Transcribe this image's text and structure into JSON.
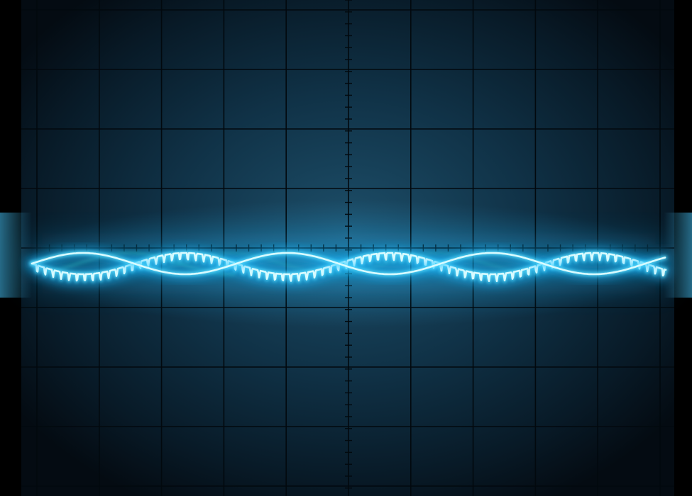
{
  "photo": {
    "subject": "oscilloscope",
    "colors": {
      "background": "#000000",
      "screen_center": "#1d4f6a",
      "screen_edge": "#050c12",
      "graticule": "#02090e",
      "trace_glow": "#14b8ff",
      "trace_core": "#d8fbff",
      "ghost_trace": "#3fd7c9"
    },
    "graticule": {
      "major_divisions_x": 10,
      "major_divisions_y": 8,
      "minor_ticks_per_division": 5
    },
    "traces": [
      {
        "name": "",
        "shape": "sine-with-ripple",
        "phase": 0,
        "cycles_visible": 3.1,
        "ripple_teeth": 80
      },
      {
        "name": "",
        "shape": "sine",
        "phase": 3.14159,
        "cycles_visible": 3.1
      }
    ]
  }
}
